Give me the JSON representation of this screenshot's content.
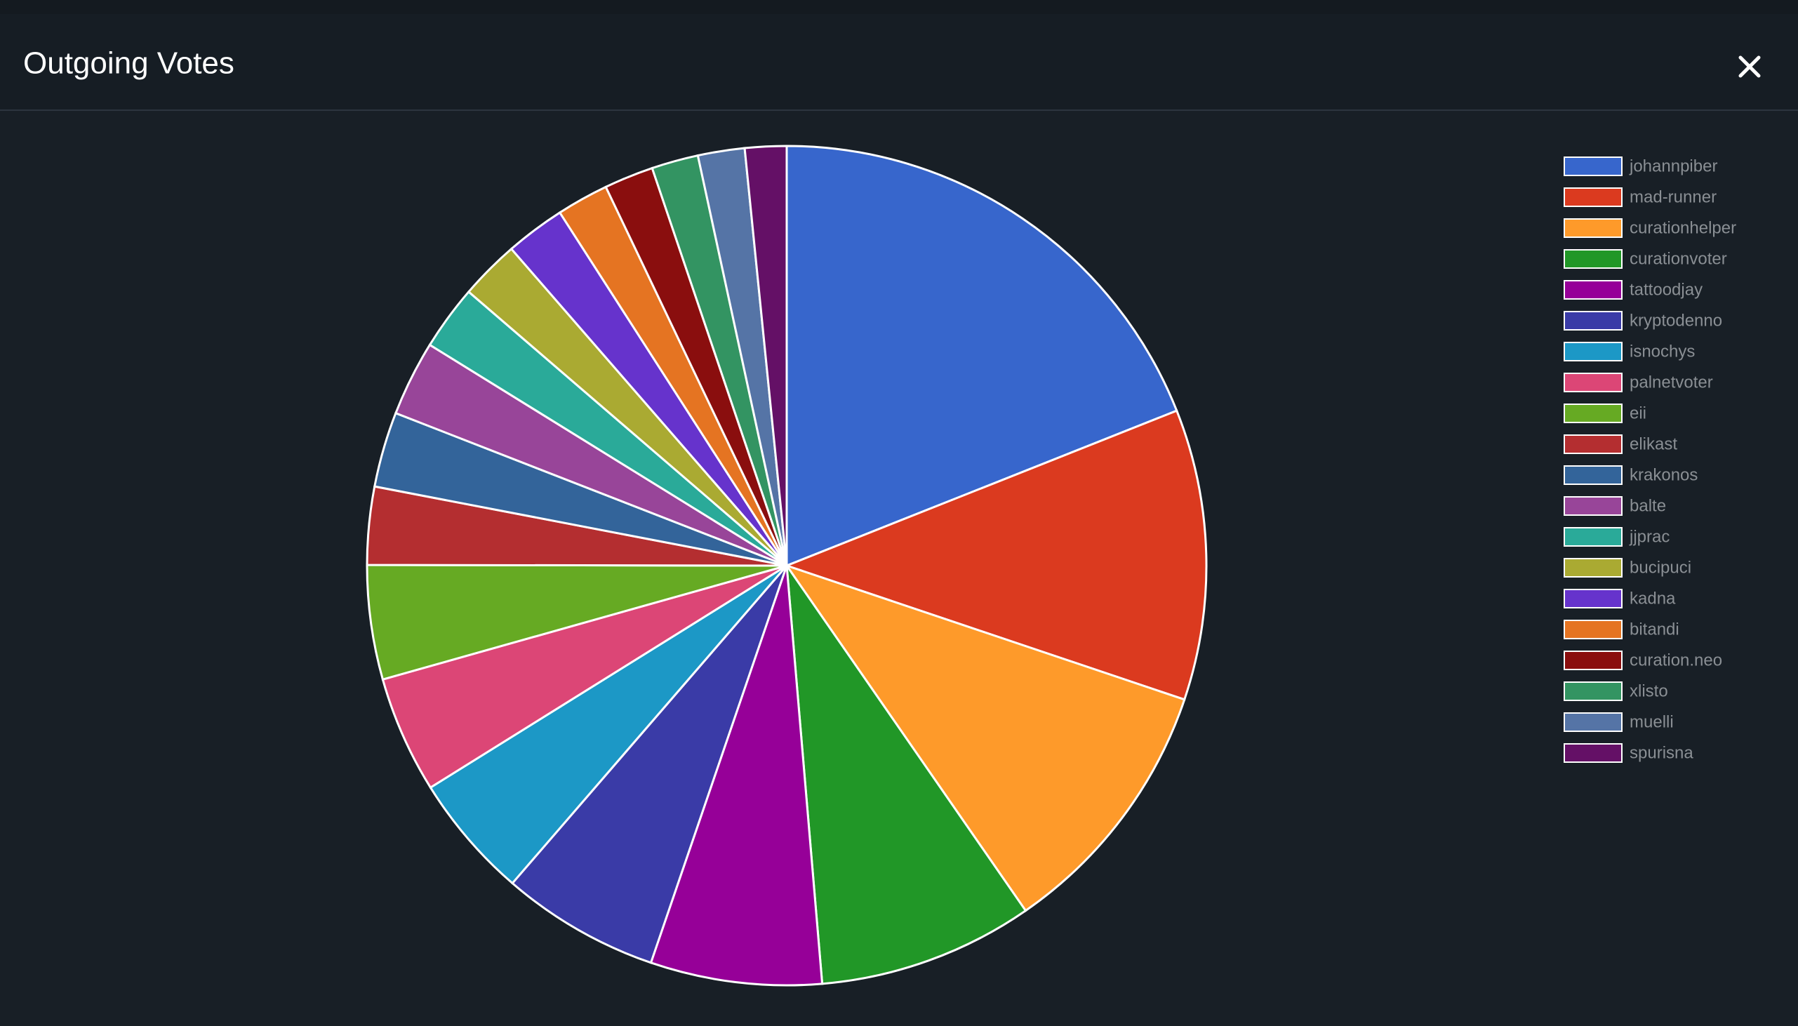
{
  "chart_data": {
    "type": "pie",
    "title": "Outgoing Votes",
    "categories": [
      "johannpiber",
      "mad-runner",
      "curationhelper",
      "curationvoter",
      "tattoodjay",
      "kryptodenno",
      "isnochys",
      "palnetvoter",
      "eii",
      "elikast",
      "krakonos",
      "balte",
      "jjprac",
      "bucipuci",
      "kadna",
      "bitandi",
      "curation.neo",
      "xlisto",
      "muelli",
      "spurisna"
    ],
    "values": [
      19.0,
      11.2,
      10.2,
      8.3,
      6.6,
      6.1,
      4.8,
      4.5,
      4.4,
      3.0,
      2.9,
      2.9,
      2.5,
      2.3,
      2.3,
      2.0,
      1.9,
      1.8,
      1.8,
      1.6
    ],
    "colors": [
      "#3766cc",
      "#db3a1f",
      "#fe9a2a",
      "#219727",
      "#960098",
      "#3a3ba7",
      "#1c98c6",
      "#dc4676",
      "#66aa23",
      "#b42e30",
      "#33649a",
      "#984599",
      "#2aaa99",
      "#aaaa32",
      "#6633cc",
      "#e57422",
      "#8a0e0e",
      "#339462",
      "#5574a6",
      "#641066"
    ],
    "legend": "right"
  }
}
